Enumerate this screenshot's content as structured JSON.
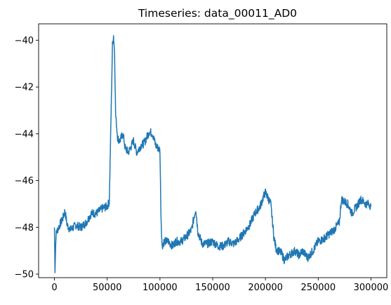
{
  "chart_data": {
    "type": "line",
    "title": "Timeseries: data_00011_AD0",
    "xlabel": "",
    "ylabel": "",
    "xlim": [
      -15000,
      315000
    ],
    "ylim": [
      -50.15,
      -39.3
    ],
    "x_ticks": [
      {
        "value": 0,
        "label": "0"
      },
      {
        "value": 50000,
        "label": "50000"
      },
      {
        "value": 100000,
        "label": "100000"
      },
      {
        "value": 150000,
        "label": "150000"
      },
      {
        "value": 200000,
        "label": "200000"
      },
      {
        "value": 250000,
        "label": "250000"
      },
      {
        "value": 300000,
        "label": "300000"
      }
    ],
    "y_ticks": [
      {
        "value": -40,
        "label": "−40"
      },
      {
        "value": -42,
        "label": "−42"
      },
      {
        "value": -44,
        "label": "−44"
      },
      {
        "value": -46,
        "label": "−46"
      },
      {
        "value": -48,
        "label": "−48"
      },
      {
        "value": -50,
        "label": "−50"
      }
    ],
    "grid": false,
    "series": [
      {
        "color": "#1f77b4",
        "noise_amplitude": 0.18,
        "points": [
          [
            0,
            -48.0
          ],
          [
            500,
            -49.8
          ],
          [
            1500,
            -48.3
          ],
          [
            3000,
            -48.1
          ],
          [
            5000,
            -47.9
          ],
          [
            8000,
            -47.6
          ],
          [
            10000,
            -47.3
          ],
          [
            12000,
            -47.9
          ],
          [
            15000,
            -48.1
          ],
          [
            18000,
            -48.0
          ],
          [
            20000,
            -47.9
          ],
          [
            25000,
            -48.0
          ],
          [
            30000,
            -47.8
          ],
          [
            35000,
            -47.4
          ],
          [
            40000,
            -47.4
          ],
          [
            45000,
            -47.2
          ],
          [
            50000,
            -47.1
          ],
          [
            52000,
            -46.9
          ],
          [
            54000,
            -42.5
          ],
          [
            55000,
            -40.2
          ],
          [
            56000,
            -39.8
          ],
          [
            57000,
            -40.5
          ],
          [
            58000,
            -43.2
          ],
          [
            60000,
            -44.2
          ],
          [
            62000,
            -44.3
          ],
          [
            65000,
            -44.0
          ],
          [
            67000,
            -44.6
          ],
          [
            70000,
            -44.8
          ],
          [
            73000,
            -44.5
          ],
          [
            75000,
            -44.3
          ],
          [
            78000,
            -44.8
          ],
          [
            82000,
            -44.5
          ],
          [
            85000,
            -44.4
          ],
          [
            88000,
            -44.1
          ],
          [
            90000,
            -43.9
          ],
          [
            93000,
            -44.0
          ],
          [
            96000,
            -44.5
          ],
          [
            98000,
            -44.6
          ],
          [
            100000,
            -44.7
          ],
          [
            101000,
            -47.5
          ],
          [
            102000,
            -48.8
          ],
          [
            104000,
            -48.6
          ],
          [
            108000,
            -48.6
          ],
          [
            112000,
            -48.8
          ],
          [
            115000,
            -48.6
          ],
          [
            120000,
            -48.6
          ],
          [
            125000,
            -48.4
          ],
          [
            130000,
            -48.1
          ],
          [
            133000,
            -47.4
          ],
          [
            134000,
            -47.2
          ],
          [
            136000,
            -48.2
          ],
          [
            140000,
            -48.7
          ],
          [
            145000,
            -48.7
          ],
          [
            150000,
            -48.6
          ],
          [
            155000,
            -48.8
          ],
          [
            160000,
            -48.8
          ],
          [
            165000,
            -48.6
          ],
          [
            170000,
            -48.7
          ],
          [
            175000,
            -48.5
          ],
          [
            180000,
            -48.2
          ],
          [
            185000,
            -47.9
          ],
          [
            190000,
            -47.4
          ],
          [
            195000,
            -47.1
          ],
          [
            198000,
            -46.7
          ],
          [
            200000,
            -46.5
          ],
          [
            203000,
            -46.8
          ],
          [
            205000,
            -47.0
          ],
          [
            208000,
            -48.4
          ],
          [
            210000,
            -48.9
          ],
          [
            212000,
            -49.0
          ],
          [
            215000,
            -49.1
          ],
          [
            218000,
            -49.4
          ],
          [
            222000,
            -49.2
          ],
          [
            225000,
            -49.1
          ],
          [
            228000,
            -49.0
          ],
          [
            232000,
            -49.2
          ],
          [
            235000,
            -49.0
          ],
          [
            240000,
            -49.3
          ],
          [
            245000,
            -49.0
          ],
          [
            250000,
            -48.6
          ],
          [
            255000,
            -48.5
          ],
          [
            260000,
            -48.3
          ],
          [
            265000,
            -48.1
          ],
          [
            270000,
            -47.8
          ],
          [
            272000,
            -46.8
          ],
          [
            275000,
            -46.9
          ],
          [
            278000,
            -47.0
          ],
          [
            282000,
            -47.4
          ],
          [
            285000,
            -47.2
          ],
          [
            288000,
            -47.0
          ],
          [
            290000,
            -46.8
          ],
          [
            293000,
            -46.9
          ],
          [
            295000,
            -47.0
          ],
          [
            298000,
            -47.0
          ],
          [
            300000,
            -47.1
          ]
        ]
      }
    ]
  }
}
